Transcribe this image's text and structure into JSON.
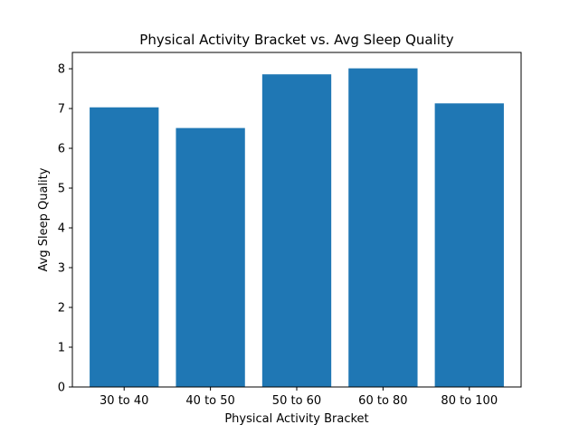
{
  "chart_data": {
    "type": "bar",
    "title": "Physical Activity Bracket vs. Avg Sleep Quality",
    "xlabel": "Physical Activity Bracket",
    "ylabel": "Avg Sleep Quality",
    "categories": [
      "30 to 40",
      "40 to 50",
      "50 to 60",
      "60 to 80",
      "80 to 100"
    ],
    "values": [
      7.03,
      6.51,
      7.86,
      8.01,
      7.13
    ],
    "ylim": [
      0,
      8.41
    ],
    "yticks": [
      0,
      1,
      2,
      3,
      4,
      5,
      6,
      7,
      8
    ],
    "bar_color": "#1f77b4",
    "grid": false,
    "legend": "none"
  }
}
